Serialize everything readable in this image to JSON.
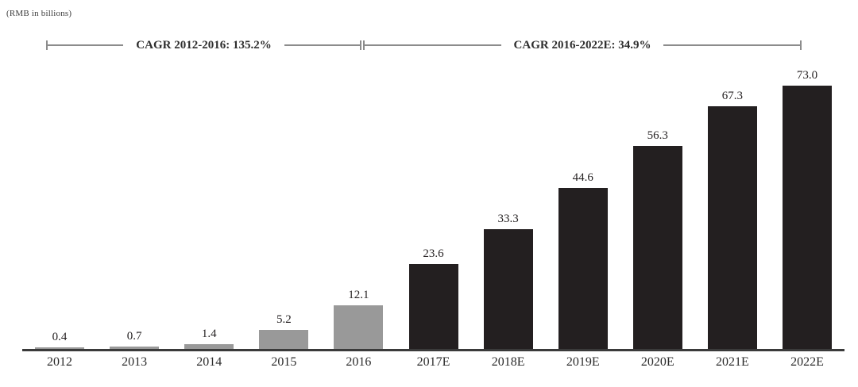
{
  "header": {
    "units_label": "(RMB in billions)"
  },
  "cagr_brackets": [
    {
      "label": "CAGR 2012-2016: 135.2%"
    },
    {
      "label": "CAGR 2016-2022E: 34.9%"
    }
  ],
  "chart_data": {
    "type": "bar",
    "title": "",
    "xlabel": "",
    "ylabel": "(RMB in billions)",
    "categories": [
      "2012",
      "2013",
      "2014",
      "2015",
      "2016",
      "2017E",
      "2018E",
      "2019E",
      "2020E",
      "2021E",
      "2022E"
    ],
    "values": [
      0.4,
      0.7,
      1.4,
      5.2,
      12.1,
      23.6,
      33.3,
      44.6,
      56.3,
      67.3,
      73.0
    ],
    "value_labels": [
      "0.4",
      "0.7",
      "1.4",
      "5.2",
      "12.1",
      "23.6",
      "33.3",
      "44.6",
      "56.3",
      "67.3",
      "73.0"
    ],
    "ylim": [
      0,
      76
    ],
    "grid": "off",
    "legend": "none",
    "historical_count": 5,
    "colors": {
      "historical_bar": "#999999",
      "forecast_bar": "#231f20",
      "axis": "#3a3a3a",
      "bracket_line": "#8c8c8c"
    },
    "annotations": [
      "CAGR 2012-2016: 135.2%",
      "CAGR 2016-2022E: 34.9%"
    ]
  }
}
